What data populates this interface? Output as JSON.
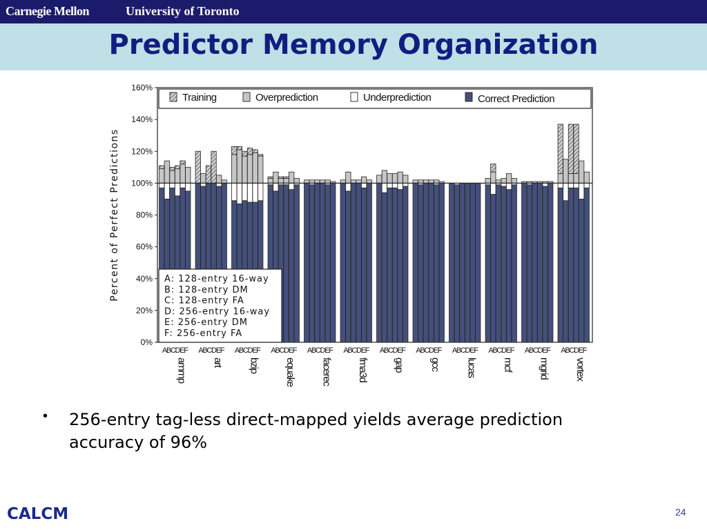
{
  "header": {
    "institution_1": "Carnegie Mellon",
    "institution_2": "University of Toronto"
  },
  "slide": {
    "title": "Predictor Memory Organization",
    "bullet_marker": "•",
    "bullet_text": "256-entry tag-less direct-mapped yields average prediction accuracy of 96%",
    "footer_logo": "CALCM",
    "page_number": "24"
  },
  "colors": {
    "bar_fill": "#44507a",
    "overpred": "#c6c6c6",
    "title": "#121d80"
  },
  "chart_data": {
    "type": "bar",
    "ylabel": "Percent of Perfect Predictions",
    "yticks": [
      "0%",
      "20%",
      "40%",
      "60%",
      "80%",
      "100%",
      "120%",
      "140%",
      "160%"
    ],
    "ylim": [
      0,
      160
    ],
    "legend": [
      "Training",
      "Overprediction",
      "Underprediction",
      "Correct Prediction"
    ],
    "legend_position": "top",
    "configs": [
      "A",
      "B",
      "C",
      "D",
      "E",
      "F"
    ],
    "config_legend": [
      "A: 128-entry 16-way",
      "B: 128-entry DM",
      "C: 128-entry FA",
      "D: 256-entry 16-way",
      "E: 256-entry DM",
      "F: 256-entry FA"
    ],
    "categories": [
      "ammp",
      "art",
      "bzip",
      "equake",
      "facerec",
      "fma3d",
      "gap",
      "gcc",
      "lucas",
      "mcf",
      "mgrid",
      "vortex"
    ],
    "series": [
      {
        "name": "Correct Prediction",
        "values": [
          [
            97,
            90,
            97,
            92,
            97,
            95
          ],
          [
            100,
            98,
            100,
            100,
            98,
            100
          ],
          [
            89,
            87,
            89,
            88,
            88,
            89
          ],
          [
            99,
            95,
            99,
            99,
            96,
            99
          ],
          [
            100,
            99,
            100,
            100,
            99,
            100
          ],
          [
            100,
            95,
            100,
            100,
            97,
            100
          ],
          [
            100,
            94,
            97,
            97,
            96,
            98
          ],
          [
            100,
            99,
            100,
            100,
            99,
            100
          ],
          [
            100,
            99,
            100,
            100,
            100,
            100
          ],
          [
            99,
            93,
            99,
            98,
            96,
            99
          ],
          [
            100,
            99,
            100,
            100,
            98,
            100
          ],
          [
            97,
            89,
            97,
            97,
            90,
            97
          ]
        ]
      },
      {
        "name": "Underprediction",
        "values": [
          [
            3,
            10,
            3,
            8,
            3,
            5
          ],
          [
            0,
            2,
            0,
            0,
            2,
            0
          ],
          [
            11,
            13,
            11,
            12,
            12,
            11
          ],
          [
            1,
            5,
            1,
            1,
            4,
            1
          ],
          [
            0,
            1,
            0,
            0,
            1,
            0
          ],
          [
            0,
            5,
            0,
            0,
            3,
            0
          ],
          [
            0,
            6,
            3,
            3,
            4,
            2
          ],
          [
            0,
            1,
            0,
            0,
            1,
            0
          ],
          [
            0,
            1,
            0,
            0,
            0,
            0
          ],
          [
            1,
            7,
            1,
            2,
            4,
            1
          ],
          [
            0,
            1,
            0,
            0,
            2,
            0
          ],
          [
            3,
            11,
            3,
            3,
            10,
            3
          ]
        ]
      },
      {
        "name": "Overprediction",
        "values": [
          [
            9,
            14,
            8,
            9,
            12,
            10
          ],
          [
            0,
            6,
            0,
            0,
            5,
            2
          ],
          [
            18,
            21,
            17,
            18,
            19,
            17
          ],
          [
            3,
            7,
            3,
            3,
            7,
            3
          ],
          [
            2,
            2,
            2,
            2,
            2,
            1
          ],
          [
            2,
            7,
            2,
            2,
            4,
            2
          ],
          [
            5,
            8,
            6,
            6,
            7,
            5
          ],
          [
            2,
            2,
            2,
            2,
            2,
            1
          ],
          [
            0,
            0,
            0,
            0,
            0,
            0
          ],
          [
            3,
            7,
            2,
            3,
            6,
            3
          ],
          [
            1,
            1,
            1,
            1,
            1,
            1
          ],
          [
            6,
            15,
            6,
            6,
            14,
            7
          ]
        ]
      },
      {
        "name": "Training",
        "values": [
          [
            2,
            0,
            2,
            2,
            2,
            0
          ],
          [
            20,
            0,
            11,
            20,
            0,
            0
          ],
          [
            5,
            2,
            3,
            4,
            2,
            1
          ],
          [
            1,
            0,
            1,
            1,
            0,
            0
          ],
          [
            0,
            0,
            0,
            0,
            0,
            0
          ],
          [
            0,
            0,
            0,
            0,
            0,
            0
          ],
          [
            0,
            0,
            0,
            0,
            0,
            0
          ],
          [
            0,
            0,
            0,
            0,
            0,
            0
          ],
          [
            0,
            0,
            0,
            0,
            0,
            0
          ],
          [
            0,
            5,
            0,
            0,
            0,
            0
          ],
          [
            0,
            0,
            0,
            0,
            0,
            0
          ],
          [
            31,
            0,
            31,
            31,
            0,
            0
          ]
        ]
      }
    ]
  }
}
